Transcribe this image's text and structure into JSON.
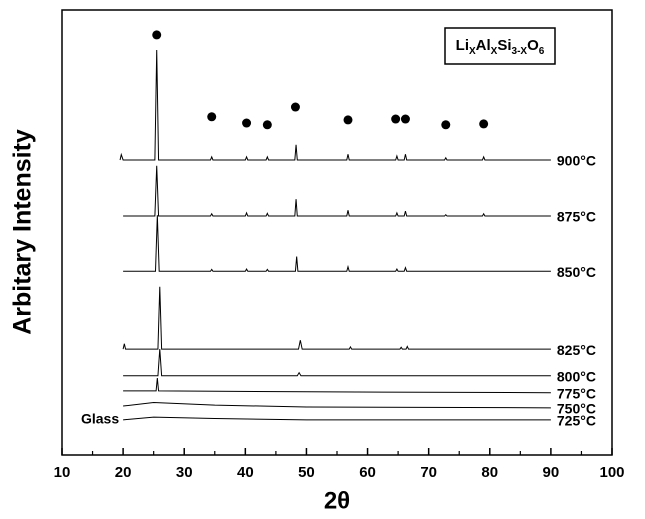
{
  "chart_data": {
    "type": "line",
    "xlabel": "2θ",
    "ylabel": "Arbitary Intensity",
    "xlim": [
      10,
      100
    ],
    "xticks": [
      10,
      20,
      30,
      40,
      50,
      60,
      70,
      80,
      90,
      100
    ],
    "xminorticks": [
      15,
      25,
      35,
      45,
      55,
      65,
      75,
      85,
      95
    ],
    "ylim": [
      0,
      100
    ],
    "color": "#000000",
    "formula": [
      "Li",
      "X",
      "Al",
      "X",
      "Si",
      "3-X",
      "O",
      "6"
    ],
    "annotation": "Glass",
    "series": [
      {
        "name": "900°C",
        "x": [
          19.5,
          19.7,
          20,
          25.2,
          25.5,
          25.8,
          34.3,
          34.5,
          34.7,
          40,
          40.2,
          40.4,
          43.4,
          43.6,
          43.8,
          48.1,
          48.3,
          48.5,
          56.6,
          56.8,
          57,
          64.6,
          64.8,
          65,
          66,
          66.2,
          66.4,
          72.6,
          72.8,
          73,
          78.8,
          79,
          79.2,
          90
        ],
        "values": [
          66.3,
          67.5,
          66.3,
          66.3,
          91,
          66.3,
          66.3,
          67,
          66.3,
          66.3,
          67,
          66.3,
          66.3,
          67,
          66.3,
          66.3,
          69.7,
          66.3,
          66.3,
          67.6,
          66.3,
          66.3,
          67.2,
          66.3,
          66.3,
          67.6,
          66.3,
          66.3,
          66.8,
          66.3,
          66.3,
          67,
          66.3,
          66.3
        ]
      },
      {
        "name": "875°C",
        "x": [
          20,
          25.2,
          25.5,
          25.8,
          34.3,
          34.5,
          34.7,
          40,
          40.2,
          40.4,
          43.4,
          43.6,
          43.8,
          48.1,
          48.3,
          48.5,
          56.6,
          56.8,
          57,
          64.6,
          64.8,
          65,
          66,
          66.2,
          66.4,
          72.6,
          72.8,
          73,
          78.8,
          79,
          79.2,
          90
        ],
        "values": [
          53.7,
          53.7,
          65,
          53.7,
          53.7,
          54.2,
          53.7,
          53.7,
          54.4,
          53.7,
          53.7,
          54.3,
          53.7,
          53.7,
          57.5,
          53.7,
          53.7,
          55,
          53.7,
          53.7,
          54.4,
          53.7,
          53.7,
          54.8,
          53.7,
          53.7,
          54,
          53.7,
          53.7,
          54.2,
          53.7,
          53.7
        ]
      },
      {
        "name": "850°C",
        "x": [
          20,
          25.3,
          25.6,
          25.9,
          34.3,
          34.5,
          34.7,
          40,
          40.2,
          40.4,
          43.4,
          43.6,
          43.8,
          48.2,
          48.4,
          48.6,
          56.6,
          56.8,
          57,
          64.6,
          64.8,
          65,
          66,
          66.2,
          66.4,
          90
        ],
        "values": [
          41.3,
          41.3,
          53.9,
          41.3,
          41.3,
          41.7,
          41.3,
          41.3,
          41.8,
          41.3,
          41.3,
          41.7,
          41.3,
          41.3,
          44.6,
          41.3,
          41.3,
          42.3,
          41.3,
          41.3,
          41.8,
          41.3,
          41.3,
          42.1,
          41.3,
          41.3
        ]
      },
      {
        "name": "825°C",
        "x": [
          20,
          20.2,
          20.4,
          25.7,
          26,
          26.3,
          48.7,
          49,
          49.3,
          57,
          57.2,
          57.4,
          65.3,
          65.5,
          65.7,
          66.3,
          66.5,
          66.7,
          90
        ],
        "values": [
          23.8,
          25,
          23.8,
          23.8,
          37.8,
          23.8,
          23.8,
          25.8,
          23.8,
          23.8,
          24.3,
          23.8,
          23.8,
          24.2,
          23.8,
          23.8,
          24.4,
          23.8,
          23.8
        ]
      },
      {
        "name": "800°C",
        "x": [
          20,
          25.7,
          26,
          26.3,
          48.5,
          48.8,
          49.1,
          90
        ],
        "values": [
          17.8,
          17.8,
          23.8,
          17.8,
          17.8,
          18.5,
          17.8,
          17.8
        ]
      },
      {
        "name": "775°C",
        "x": [
          20,
          25.4,
          25.6,
          25.8,
          50,
          90
        ],
        "values": [
          14.4,
          14.4,
          17.3,
          14.4,
          14.2,
          14.0
        ]
      },
      {
        "name": "750°C",
        "x": [
          20,
          25,
          35,
          50,
          90
        ],
        "values": [
          11.0,
          11.8,
          11.2,
          10.8,
          10.6
        ]
      },
      {
        "name": "725°C",
        "x": [
          20,
          25,
          35,
          50,
          90
        ],
        "values": [
          7.9,
          8.5,
          8.2,
          7.9,
          7.9
        ]
      }
    ],
    "peak_markers": {
      "x": [
        25.5,
        34.5,
        40.2,
        43.6,
        48.2,
        56.8,
        64.6,
        66.2,
        72.8,
        79
      ],
      "y": [
        94.4,
        76,
        74.6,
        74.2,
        78.2,
        75.3,
        75.5,
        75.5,
        74.2,
        74.4
      ]
    }
  }
}
